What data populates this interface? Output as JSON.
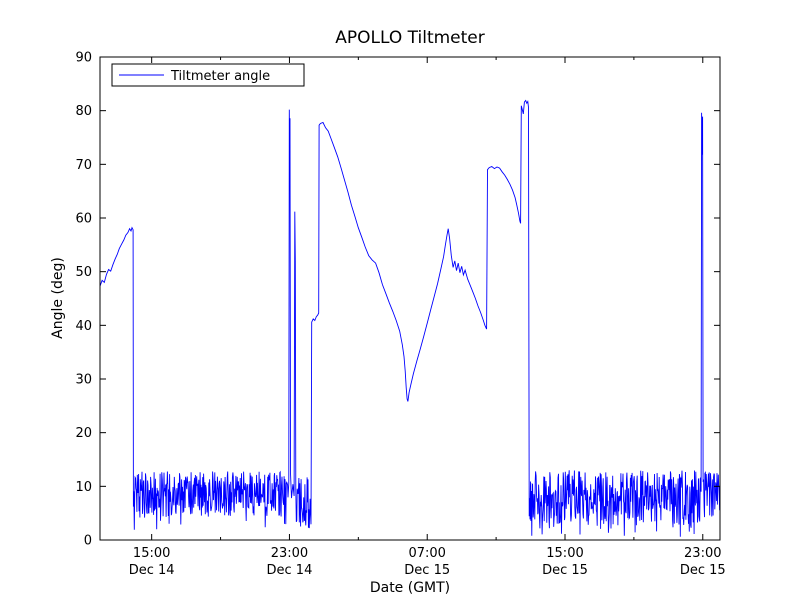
{
  "figure": {
    "background": "#ffffff",
    "axes_border_color": "#000000"
  },
  "chart_data": {
    "type": "line",
    "title": "APOLLO Tiltmeter",
    "xlabel": "Date (GMT)",
    "ylabel": "Angle (deg)",
    "legend_position": "upper left",
    "grid": false,
    "line_color": "#0000ff",
    "series": {
      "name": "Tiltmeter angle",
      "color": "#0000ff"
    },
    "x_axis": {
      "units": "hours since Dec 14 12:00 GMT",
      "range": [
        0,
        36
      ],
      "major_ticks": [
        {
          "t": 3,
          "time": "15:00",
          "date": "Dec 14"
        },
        {
          "t": 11,
          "time": "23:00",
          "date": "Dec 14"
        },
        {
          "t": 19,
          "time": "07:00",
          "date": "Dec 15"
        },
        {
          "t": 27,
          "time": "15:00",
          "date": "Dec 15"
        },
        {
          "t": 35,
          "time": "23:00",
          "date": "Dec 15"
        }
      ],
      "minor_ticks": [
        7,
        15,
        23,
        31
      ]
    },
    "y_axis": {
      "range": [
        0,
        90
      ],
      "ticks": [
        0,
        10,
        20,
        30,
        40,
        50,
        60,
        70,
        80,
        90
      ]
    },
    "noise_seed": 42,
    "noise_dt": 0.025,
    "segments": [
      {
        "type": "trend",
        "label": "initial-rise-47-to-58",
        "points": [
          [
            0,
            47.3
          ],
          [
            0.12,
            48.4
          ],
          [
            0.25,
            48.0
          ],
          [
            0.38,
            49.5
          ],
          [
            0.5,
            50.4
          ],
          [
            0.62,
            50.1
          ],
          [
            0.75,
            51.3
          ],
          [
            0.88,
            52.4
          ],
          [
            1.0,
            53.2
          ],
          [
            1.12,
            54.3
          ],
          [
            1.25,
            55.1
          ],
          [
            1.38,
            55.9
          ],
          [
            1.5,
            56.8
          ],
          [
            1.62,
            57.3
          ],
          [
            1.72,
            58.0
          ],
          [
            1.8,
            57.6
          ],
          [
            1.86,
            58.2
          ],
          [
            1.92,
            57.8
          ]
        ]
      },
      {
        "type": "noise",
        "label": "low-noise-band-afternoon-dec14",
        "t0": 1.94,
        "t1": 10.94,
        "lo": 4.0,
        "hi": 12.8,
        "dip_p": 0.03,
        "dip_lo": 0.8,
        "dip_hi": 3.8
      },
      {
        "type": "trend",
        "label": "spikes-at-2300-dec14",
        "points": [
          [
            10.96,
            10.5
          ],
          [
            10.99,
            80.2
          ],
          [
            11.01,
            71.5
          ],
          [
            11.03,
            78.6
          ],
          [
            11.06,
            12.5
          ],
          [
            11.12,
            7.8
          ],
          [
            11.2,
            10.4
          ],
          [
            11.27,
            8.2
          ],
          [
            11.31,
            61.2
          ],
          [
            11.34,
            52.0
          ],
          [
            11.37,
            9.5
          ]
        ]
      },
      {
        "type": "noise",
        "label": "noise-after-2300",
        "t0": 11.4,
        "t1": 12.26,
        "lo": 2.2,
        "hi": 11.8,
        "dip_p": 0.05,
        "dip_lo": 1.0,
        "dip_hi": 2.5
      },
      {
        "type": "trend",
        "label": "step-plateau-41",
        "points": [
          [
            12.29,
            40.6
          ],
          [
            12.38,
            41.2
          ],
          [
            12.47,
            40.9
          ],
          [
            12.56,
            41.6
          ],
          [
            12.64,
            41.9
          ],
          [
            12.7,
            42.3
          ]
        ]
      },
      {
        "type": "trend",
        "label": "jump-77-decay-to-26",
        "points": [
          [
            12.72,
            77.3
          ],
          [
            12.8,
            77.6
          ],
          [
            12.95,
            77.8
          ],
          [
            13.1,
            76.8
          ],
          [
            13.25,
            76.2
          ],
          [
            13.4,
            74.9
          ],
          [
            13.6,
            73.2
          ],
          [
            13.8,
            71.4
          ],
          [
            14.0,
            69.3
          ],
          [
            14.2,
            67.0
          ],
          [
            14.4,
            64.8
          ],
          [
            14.6,
            62.4
          ],
          [
            14.8,
            60.3
          ],
          [
            15.0,
            58.2
          ],
          [
            15.2,
            56.4
          ],
          [
            15.4,
            54.6
          ],
          [
            15.6,
            53.0
          ],
          [
            15.8,
            52.2
          ],
          [
            16.0,
            51.6
          ],
          [
            16.2,
            49.8
          ],
          [
            16.4,
            47.6
          ],
          [
            16.6,
            45.9
          ],
          [
            16.8,
            44.2
          ],
          [
            17.0,
            42.6
          ],
          [
            17.2,
            40.9
          ],
          [
            17.4,
            38.9
          ],
          [
            17.55,
            36.4
          ],
          [
            17.65,
            34.2
          ],
          [
            17.72,
            31.5
          ],
          [
            17.78,
            28.4
          ],
          [
            17.83,
            26.3
          ],
          [
            17.88,
            25.8
          ]
        ]
      },
      {
        "type": "trend",
        "label": "rise-to-58-then-wavy-decline-to-39",
        "points": [
          [
            17.95,
            27.5
          ],
          [
            18.05,
            29.0
          ],
          [
            18.2,
            31.0
          ],
          [
            18.4,
            33.4
          ],
          [
            18.6,
            35.6
          ],
          [
            18.8,
            38.0
          ],
          [
            19.0,
            40.4
          ],
          [
            19.2,
            42.9
          ],
          [
            19.4,
            45.3
          ],
          [
            19.6,
            47.8
          ],
          [
            19.8,
            50.6
          ],
          [
            19.95,
            52.8
          ],
          [
            20.05,
            54.9
          ],
          [
            20.15,
            56.8
          ],
          [
            20.22,
            58.0
          ],
          [
            20.3,
            56.2
          ],
          [
            20.4,
            53.0
          ],
          [
            20.5,
            50.8
          ],
          [
            20.6,
            52.0
          ],
          [
            20.7,
            50.2
          ],
          [
            20.8,
            51.6
          ],
          [
            20.9,
            49.8
          ],
          [
            21.0,
            51.0
          ],
          [
            21.1,
            49.4
          ],
          [
            21.2,
            50.3
          ],
          [
            21.35,
            48.6
          ],
          [
            21.5,
            47.4
          ],
          [
            21.65,
            46.2
          ],
          [
            21.8,
            45.0
          ],
          [
            21.95,
            43.6
          ],
          [
            22.1,
            42.4
          ],
          [
            22.25,
            41.0
          ],
          [
            22.35,
            40.0
          ],
          [
            22.45,
            39.3
          ]
        ]
      },
      {
        "type": "trend",
        "label": "jump-69-plateau-decline-to-59",
        "points": [
          [
            22.5,
            69.0
          ],
          [
            22.6,
            69.4
          ],
          [
            22.75,
            69.6
          ],
          [
            22.9,
            69.2
          ],
          [
            23.05,
            69.5
          ],
          [
            23.2,
            69.3
          ],
          [
            23.35,
            68.6
          ],
          [
            23.5,
            68.0
          ],
          [
            23.65,
            67.2
          ],
          [
            23.8,
            66.3
          ],
          [
            23.95,
            65.2
          ],
          [
            24.1,
            63.8
          ],
          [
            24.2,
            62.4
          ],
          [
            24.3,
            60.9
          ],
          [
            24.38,
            59.4
          ],
          [
            24.42,
            59.0
          ]
        ]
      },
      {
        "type": "trend",
        "label": "double-spike-82",
        "points": [
          [
            24.46,
            80.9
          ],
          [
            24.52,
            80.2
          ],
          [
            24.58,
            79.4
          ],
          [
            24.64,
            81.6
          ],
          [
            24.72,
            81.9
          ],
          [
            24.78,
            81.4
          ],
          [
            24.84,
            81.7
          ],
          [
            24.88,
            80.6
          ]
        ]
      },
      {
        "type": "noise",
        "label": "low-noise-band-dec15",
        "t0": 24.92,
        "t1": 34.88,
        "lo": 2.8,
        "hi": 13.0,
        "dip_p": 0.06,
        "dip_lo": 0.6,
        "dip_hi": 2.8
      },
      {
        "type": "trend",
        "label": "final-spike-79",
        "points": [
          [
            34.9,
            9.0
          ],
          [
            34.93,
            79.6
          ],
          [
            34.96,
            71.8
          ],
          [
            34.99,
            78.9
          ],
          [
            35.02,
            11.0
          ]
        ]
      },
      {
        "type": "noise",
        "label": "trailing-noise",
        "t0": 35.05,
        "t1": 36.0,
        "lo": 4.0,
        "hi": 12.6,
        "dip_p": 0.02,
        "dip_lo": 1.5,
        "dip_hi": 3.5
      }
    ]
  }
}
